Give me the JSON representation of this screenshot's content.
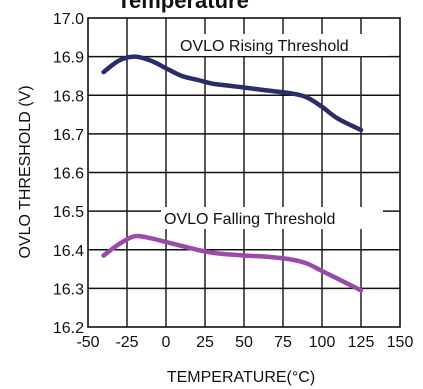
{
  "chart_data": {
    "type": "line",
    "title": "Temperature",
    "xlabel": "TEMPERATURE(°C)",
    "ylabel": "OVLO THRESHOLD (V)",
    "xlim": [
      -50,
      150
    ],
    "ylim": [
      16.2,
      17.0
    ],
    "x_ticks": [
      -50,
      -25,
      0,
      25,
      50,
      75,
      100,
      125,
      150
    ],
    "y_ticks": [
      16.2,
      16.3,
      16.4,
      16.5,
      16.6,
      16.7,
      16.8,
      16.9,
      17.0
    ],
    "x_tick_labels": [
      "-50",
      "-25",
      "0",
      "25",
      "50",
      "75",
      "100",
      "125",
      "150"
    ],
    "y_tick_labels": [
      "16.2",
      "16.3",
      "16.4",
      "16.5",
      "16.6",
      "16.7",
      "16.8",
      "16.9",
      "17.0"
    ],
    "grid": true,
    "series": [
      {
        "name": "OVLO Rising Threshold",
        "color": "#2b2d6b",
        "x": [
          -40,
          -30,
          -20,
          -10,
          0,
          10,
          20,
          30,
          40,
          50,
          60,
          70,
          80,
          90,
          100,
          110,
          125
        ],
        "y": [
          16.86,
          16.89,
          16.9,
          16.89,
          16.87,
          16.85,
          16.84,
          16.83,
          16.825,
          16.82,
          16.815,
          16.81,
          16.805,
          16.795,
          16.77,
          16.74,
          16.71
        ]
      },
      {
        "name": "OVLO Falling Threshold",
        "color": "#9a4aa8",
        "x": [
          -40,
          -30,
          -20,
          -10,
          0,
          10,
          20,
          30,
          40,
          50,
          60,
          70,
          80,
          90,
          100,
          110,
          125
        ],
        "y": [
          16.385,
          16.415,
          16.435,
          16.43,
          16.42,
          16.41,
          16.4,
          16.392,
          16.388,
          16.385,
          16.383,
          16.38,
          16.375,
          16.365,
          16.345,
          16.325,
          16.295
        ]
      }
    ],
    "annotations": [
      "OVLO Rising Threshold",
      "OVLO Falling Threshold"
    ]
  }
}
